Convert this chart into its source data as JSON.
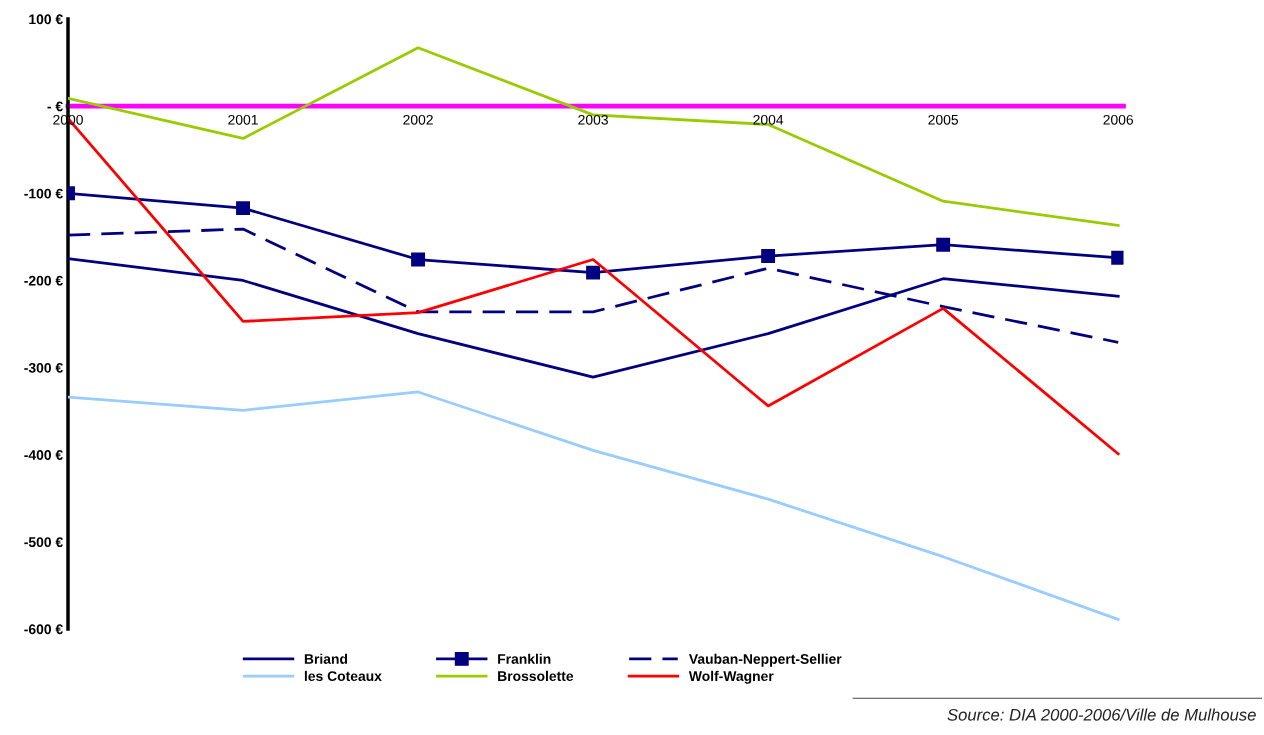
{
  "chart_data": {
    "type": "line",
    "categories": [
      "2000",
      "2001",
      "2002",
      "2003",
      "2004",
      "2005",
      "2006"
    ],
    "series": [
      {
        "name": "Briand",
        "color": "#000080",
        "values": [
          -175,
          -200,
          -261,
          -311,
          -261,
          -198,
          -218
        ]
      },
      {
        "name": "Franklin",
        "color": "#000080",
        "marker": "square",
        "values": [
          -100,
          -117,
          -176,
          -191,
          -172,
          -159,
          -174
        ]
      },
      {
        "name": "Vauban-Neppert-Sellier",
        "color": "#000080",
        "line_style": "dashed",
        "values": [
          -148,
          -141,
          -236,
          -236,
          -186,
          -230,
          -271
        ]
      },
      {
        "name": "les Coteaux",
        "color": "#99ccff",
        "values": [
          -334,
          -349,
          -328,
          -395,
          -451,
          -517,
          -589
        ]
      },
      {
        "name": "Brossolette",
        "color": "#99cc00",
        "values": [
          9,
          -37,
          67,
          -10,
          -21,
          -109,
          -137
        ]
      },
      {
        "name": "Wolf-Wagner",
        "color": "#ff0000",
        "values": [
          -14,
          -247,
          -237,
          -176,
          -344,
          -232,
          -399
        ]
      }
    ],
    "ylim": [
      -600,
      100
    ],
    "yticks": [
      {
        "value": 100,
        "label": "100 €"
      },
      {
        "value": 0,
        "label": "- €"
      },
      {
        "value": -100,
        "label": "-100 €"
      },
      {
        "value": -200,
        "label": "-200 €"
      },
      {
        "value": -300,
        "label": "-300 €"
      },
      {
        "value": -400,
        "label": "-400 €"
      },
      {
        "value": -500,
        "label": "-500 €"
      },
      {
        "value": -600,
        "label": "-600 €"
      }
    ],
    "grid": false,
    "legend": "bottom",
    "marker": "none",
    "line_style": "solid",
    "annotations": [
      "Source: DIA 2000-2006/Ville de Mulhouse"
    ]
  }
}
